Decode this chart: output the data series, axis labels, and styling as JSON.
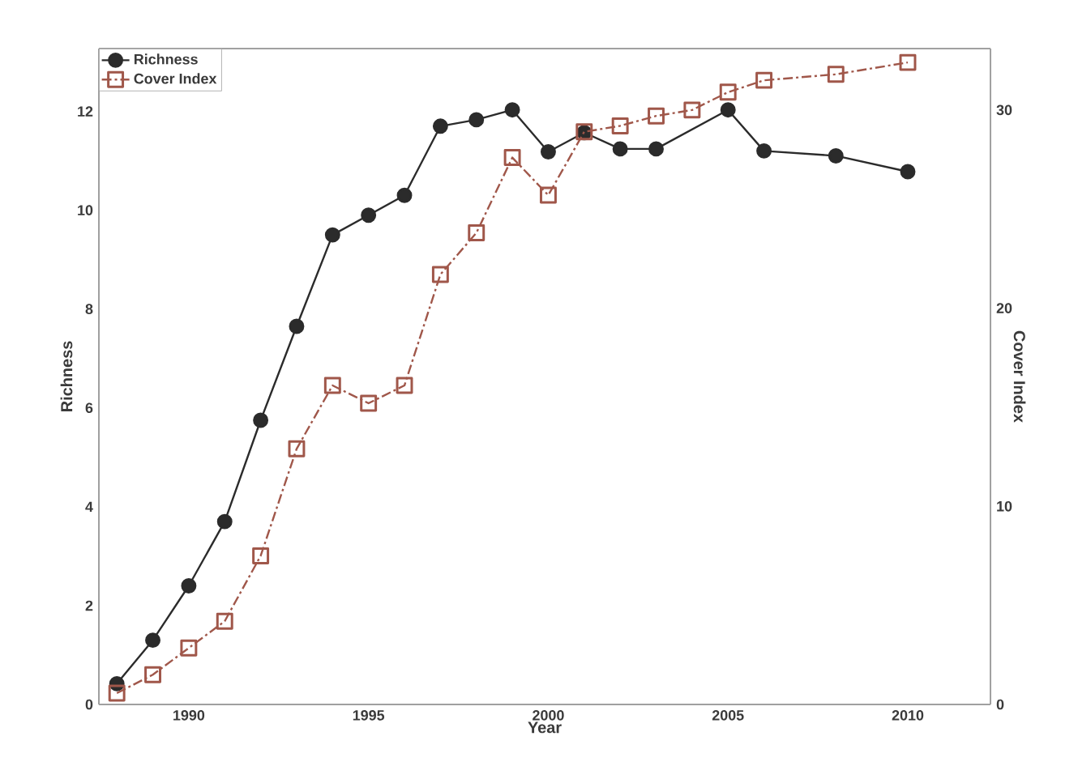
{
  "chart_data": {
    "type": "line",
    "xlabel": "Year",
    "ylabel": "Richness",
    "y2label": "Cover Index",
    "x": [
      1988,
      1989,
      1990,
      1991,
      1992,
      1993,
      1994,
      1995,
      1996,
      1997,
      1998,
      1999,
      2000,
      2001,
      2002,
      2003,
      2004,
      2005,
      2006,
      2008,
      2010
    ],
    "series": [
      {
        "name": "Richness",
        "color": "#2b2b2b",
        "marker": "circle",
        "line_style": "solid",
        "values": [
          0.42,
          1.3,
          2.4,
          3.7,
          5.75,
          7.65,
          9.5,
          9.9,
          10.3,
          11.7,
          11.83,
          12.03,
          11.18,
          11.57,
          11.24,
          11.24,
          null,
          12.03,
          11.2,
          11.1,
          10.78
        ]
      },
      {
        "name": "Cover Index",
        "color": "#a0574a",
        "marker": "square",
        "line_style": "dashdot",
        "axis": "y2",
        "values": [
          0.57,
          1.5,
          2.85,
          4.2,
          7.5,
          12.9,
          16.1,
          15.2,
          16.1,
          21.7,
          23.8,
          27.6,
          25.7,
          28.9,
          29.2,
          29.7,
          30.0,
          30.9,
          31.5,
          31.8,
          32.4
        ]
      }
    ],
    "xlim": [
      1987.5,
      2012.3
    ],
    "xticks": [
      1990,
      1995,
      2000,
      2005,
      2010
    ],
    "ylim": [
      0,
      13.27
    ],
    "yticks": [
      0,
      2,
      4,
      6,
      8,
      10,
      12
    ],
    "y2lim": [
      0,
      33.1
    ],
    "y2ticks": [
      0,
      10,
      20,
      30
    ],
    "legend": "top left"
  }
}
